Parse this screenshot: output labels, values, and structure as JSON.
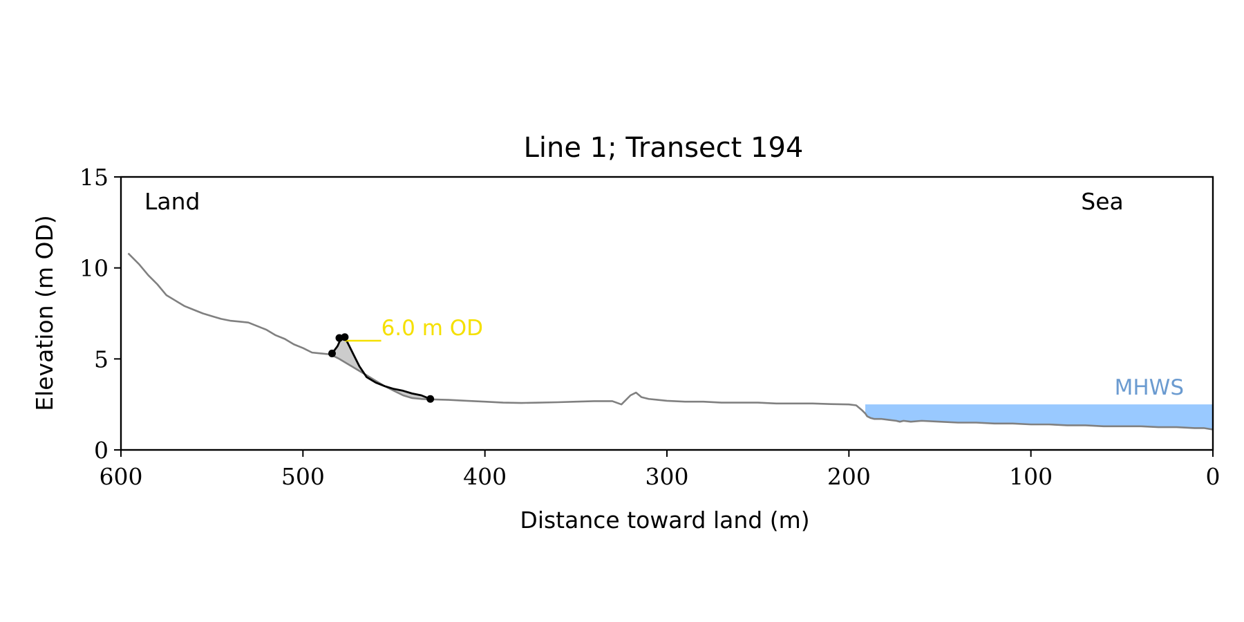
{
  "chart_data": {
    "type": "line",
    "title": "Line 1; Transect 194",
    "xlabel": "Distance toward land (m)",
    "ylabel": "Elevation (m OD)",
    "xlim": [
      600,
      0
    ],
    "ylim": [
      0,
      15
    ],
    "x_ticks": [
      600,
      500,
      400,
      300,
      200,
      100,
      0
    ],
    "y_ticks": [
      0,
      5,
      10,
      15
    ],
    "grid": false,
    "corner_labels": {
      "left": "Land",
      "right": "Sea"
    },
    "colors": {
      "profile": "#808080",
      "dune": "#000000",
      "dune_fill": "#cccccc",
      "contour": "#f5e000",
      "mhws_fill": "#99c9ff",
      "mhws_text": "#6b9bd0"
    },
    "series": [
      {
        "x": [
          596,
          590,
          585,
          580,
          575,
          570,
          565,
          560,
          555,
          550,
          545,
          540,
          535,
          530,
          525,
          520,
          515,
          510,
          505,
          500,
          495,
          490,
          485,
          480,
          475,
          470,
          465,
          460,
          455,
          450,
          445,
          440,
          435,
          430,
          420,
          410,
          400,
          390,
          380,
          370,
          360,
          350,
          340,
          330,
          325,
          320,
          317,
          314,
          310,
          305,
          300,
          290,
          280,
          270,
          260,
          250,
          240,
          230,
          220,
          210,
          200,
          196,
          193,
          191,
          190,
          188,
          186,
          182,
          178,
          174,
          172,
          170,
          166,
          160,
          150,
          140,
          130,
          120,
          110,
          100,
          90,
          80,
          70,
          60,
          50,
          40,
          30,
          20,
          10,
          5,
          0
        ],
        "y": [
          10.8,
          10.2,
          9.6,
          9.1,
          8.5,
          8.2,
          7.9,
          7.7,
          7.5,
          7.35,
          7.2,
          7.1,
          7.05,
          7.0,
          6.8,
          6.6,
          6.3,
          6.1,
          5.8,
          5.6,
          5.35,
          5.3,
          5.25,
          5.0,
          4.7,
          4.4,
          4.1,
          3.8,
          3.5,
          3.25,
          3.0,
          2.85,
          2.8,
          2.78,
          2.75,
          2.7,
          2.65,
          2.6,
          2.58,
          2.6,
          2.62,
          2.65,
          2.68,
          2.68,
          2.5,
          3.0,
          3.15,
          2.9,
          2.8,
          2.75,
          2.7,
          2.65,
          2.65,
          2.6,
          2.6,
          2.6,
          2.55,
          2.55,
          2.55,
          2.52,
          2.5,
          2.45,
          2.2,
          2.0,
          1.85,
          1.75,
          1.7,
          1.7,
          1.65,
          1.6,
          1.55,
          1.6,
          1.55,
          1.6,
          1.55,
          1.5,
          1.5,
          1.45,
          1.45,
          1.4,
          1.4,
          1.35,
          1.35,
          1.3,
          1.3,
          1.3,
          1.25,
          1.25,
          1.2,
          1.2,
          1.12
        ]
      },
      {
        "x": [
          484,
          481,
          479,
          477,
          475,
          472,
          469,
          465,
          460,
          455,
          450,
          445,
          440,
          435,
          430
        ],
        "y": [
          5.3,
          5.7,
          6.15,
          6.2,
          5.8,
          5.2,
          4.6,
          4.0,
          3.7,
          3.5,
          3.35,
          3.25,
          3.1,
          3.0,
          2.8
        ]
      }
    ],
    "markers": [
      {
        "x": 484,
        "y": 5.3
      },
      {
        "x": 480,
        "y": 6.15
      },
      {
        "x": 477,
        "y": 6.2
      },
      {
        "x": 430,
        "y": 2.8
      }
    ],
    "annotations": [
      {
        "text": "6.0 m OD",
        "y": 6.0,
        "x_start": 477,
        "x_end": 457
      },
      {
        "text": "MHWS",
        "y": 2.5,
        "x_start": 191,
        "x_end": 0
      }
    ]
  }
}
